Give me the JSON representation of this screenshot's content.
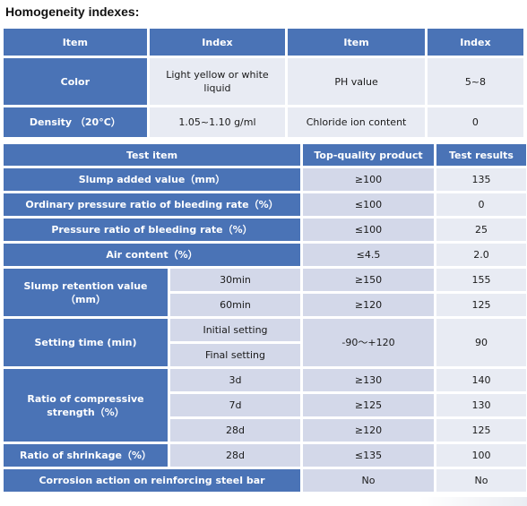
{
  "title": "Homogeneity indexes:",
  "table1": {
    "headers": [
      "Item",
      "Index",
      "Item",
      "Index"
    ],
    "rows": [
      {
        "item1": "Color",
        "index1": "Light yellow or white liquid",
        "item2": "PH value",
        "index2": "5~8"
      },
      {
        "item1": "Density （20°C）",
        "index1": "1.05~1.10 g/ml",
        "item2": "Chloride ion content",
        "index2": "0"
      }
    ]
  },
  "table2": {
    "headers": [
      "Test item",
      "Top-quality product",
      "Test results"
    ],
    "slump_added": {
      "label": "Slump added value（mm）",
      "spec": "≥100",
      "result": "135"
    },
    "ordinary_bleeding": {
      "label": "Ordinary pressure ratio of bleeding rate（%）",
      "spec": "≤100",
      "result": "0"
    },
    "pressure_bleeding": {
      "label": "Pressure ratio of bleeding rate（%）",
      "spec": "≤100",
      "result": "25"
    },
    "air_content": {
      "label": "Air content（%）",
      "spec": "≤4.5",
      "result": "2.0"
    },
    "slump_retention": {
      "label": "Slump retention value（mm）",
      "rows": [
        {
          "sub": "30min",
          "spec": "≥150",
          "result": "155"
        },
        {
          "sub": "60min",
          "spec": "≥120",
          "result": "125"
        }
      ]
    },
    "setting_time": {
      "label": "Setting time (min)",
      "subs": [
        "Initial setting",
        "Final setting"
      ],
      "spec": "-90～+120",
      "result": "90"
    },
    "compressive": {
      "label": "Ratio of compressive strength（%）",
      "rows": [
        {
          "sub": "3d",
          "spec": "≥130",
          "result": "140"
        },
        {
          "sub": "7d",
          "spec": "≥125",
          "result": "130"
        },
        {
          "sub": "28d",
          "spec": "≥120",
          "result": "125"
        }
      ]
    },
    "shrinkage": {
      "label": "Ratio of shrinkage（%）",
      "sub": "28d",
      "spec": "≤135",
      "result": "100"
    },
    "corrosion": {
      "label": "Corrosion action on reinforcing steel bar",
      "spec": "No",
      "result": "No"
    }
  },
  "colors": {
    "header_blue": "#4a73b6",
    "cell_gray": "#d3d8e9",
    "cell_light": "#e8ebf3"
  }
}
